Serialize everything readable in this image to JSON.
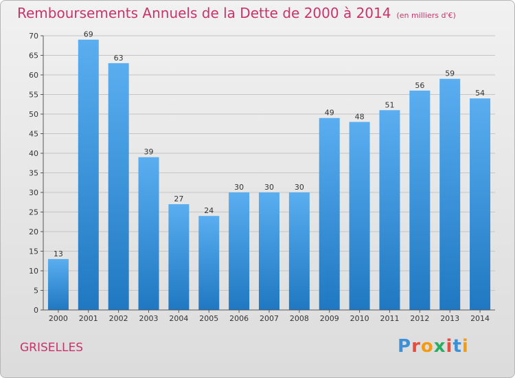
{
  "title": "Remboursements Annuels de la Dette de 2000 à 2014",
  "unit_note": "(en milliers d'€)",
  "place_name": "GRISELLES",
  "logo_text": "Proxiti",
  "logo_colors": [
    "#3d8fd6",
    "#e74c3c",
    "#f39c12",
    "#27ae60",
    "#e74c3c",
    "#3d8fd6",
    "#f39c12"
  ],
  "colors": {
    "title": "#c8336a",
    "bar_light": "#5aaef0",
    "bar_dark": "#1f78c1",
    "grid": "#c4c4c4",
    "axis": "#555555"
  },
  "chart_data": {
    "type": "bar",
    "title": "Remboursements Annuels de la Dette de 2000 à 2014",
    "xlabel": "",
    "ylabel": "",
    "categories": [
      "2000",
      "2001",
      "2002",
      "2003",
      "2004",
      "2005",
      "2006",
      "2007",
      "2008",
      "2009",
      "2010",
      "2011",
      "2012",
      "2013",
      "2014"
    ],
    "values": [
      13,
      69,
      63,
      39,
      27,
      24,
      30,
      30,
      30,
      49,
      48,
      51,
      56,
      59,
      54
    ],
    "ylim": [
      0,
      70
    ],
    "yticks": [
      0,
      5,
      10,
      15,
      20,
      25,
      30,
      35,
      40,
      45,
      50,
      55,
      60,
      65,
      70
    ],
    "grid": true,
    "legend": "none"
  }
}
